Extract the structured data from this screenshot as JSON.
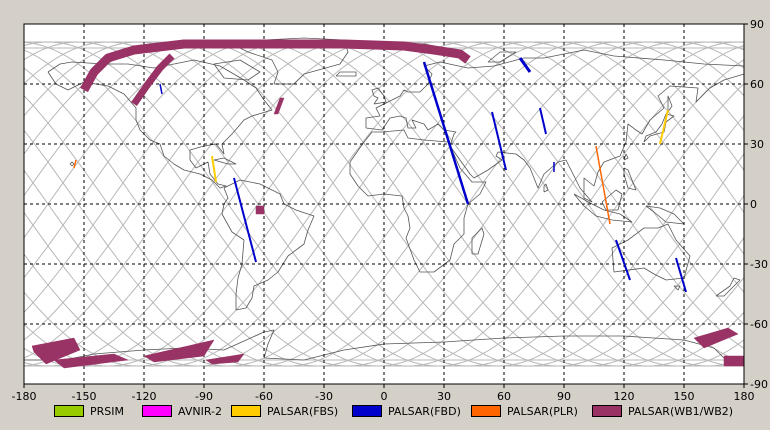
{
  "map": {
    "xlim": [
      -180,
      180
    ],
    "ylim": [
      -90,
      90
    ],
    "x_ticks": [
      {
        "value": -180,
        "label": "-180"
      },
      {
        "value": -150,
        "label": "-150"
      },
      {
        "value": -120,
        "label": "-120"
      },
      {
        "value": -90,
        "label": "-90"
      },
      {
        "value": -60,
        "label": "-60"
      },
      {
        "value": -30,
        "label": "-30"
      },
      {
        "value": 0,
        "label": "0"
      },
      {
        "value": 30,
        "label": "30"
      },
      {
        "value": 60,
        "label": "60"
      },
      {
        "value": 90,
        "label": "90"
      },
      {
        "value": 120,
        "label": "120"
      },
      {
        "value": 150,
        "label": "150"
      },
      {
        "value": 180,
        "label": "180"
      }
    ],
    "y_ticks": [
      {
        "value": 90,
        "label": "90"
      },
      {
        "value": 60,
        "label": "60"
      },
      {
        "value": 30,
        "label": "30"
      },
      {
        "value": 0,
        "label": "0"
      },
      {
        "value": -30,
        "label": "-30"
      },
      {
        "value": -60,
        "label": "-60"
      },
      {
        "value": -90,
        "label": "-90"
      }
    ],
    "grid": "dashed",
    "background_color": "#ffffff",
    "coastline_color": "#555555",
    "orbit_track_color": "#b8b8b8"
  },
  "legend": [
    {
      "label": "PRSIM",
      "color": "#99cc00"
    },
    {
      "label": "AVNIR-2",
      "color": "#ff00ff"
    },
    {
      "label": "PALSAR(FBS)",
      "color": "#ffcc00"
    },
    {
      "label": "PALSAR(FBD)",
      "color": "#0000cc"
    },
    {
      "label": "PALSAR(PLR)",
      "color": "#ff6600"
    },
    {
      "label": "PALSAR(WB1/WB2)",
      "color": "#993366"
    }
  ],
  "acquisitions": [
    {
      "mode": "PALSAR(WB1/WB2)",
      "type": "band",
      "width": 9,
      "path": [
        [
          -150,
          57
        ],
        [
          -145,
          66
        ],
        [
          -138,
          73
        ],
        [
          -125,
          77
        ],
        [
          -100,
          80
        ],
        [
          -60,
          80
        ],
        [
          -20,
          80
        ],
        [
          10,
          79
        ],
        [
          25,
          77
        ],
        [
          38,
          75
        ],
        [
          42,
          72
        ]
      ]
    },
    {
      "mode": "PALSAR(WB1/WB2)",
      "type": "band",
      "width": 7,
      "path": [
        [
          -125,
          50
        ],
        [
          -118,
          60
        ],
        [
          -112,
          68
        ],
        [
          -106,
          74
        ]
      ]
    },
    {
      "mode": "PALSAR(WB1/WB2)",
      "type": "polygon",
      "points": [
        [
          -52,
          53
        ],
        [
          -50,
          53
        ],
        [
          -53,
          45
        ],
        [
          -55,
          45
        ]
      ]
    },
    {
      "mode": "PALSAR(WB1/WB2)",
      "type": "polygon",
      "points": [
        [
          -64,
          -1
        ],
        [
          -60,
          -1
        ],
        [
          -60,
          -5
        ],
        [
          -64,
          -5
        ]
      ]
    },
    {
      "mode": "PALSAR(WB1/WB2)",
      "type": "polygon",
      "points": [
        [
          -176,
          -71
        ],
        [
          -155,
          -67
        ],
        [
          -152,
          -73
        ],
        [
          -169,
          -80
        ],
        [
          -175,
          -74
        ]
      ]
    },
    {
      "mode": "PALSAR(WB1/WB2)",
      "type": "polygon",
      "points": [
        [
          -165,
          -78
        ],
        [
          -135,
          -75
        ],
        [
          -128,
          -78
        ],
        [
          -160,
          -82
        ]
      ]
    },
    {
      "mode": "PALSAR(WB1/WB2)",
      "type": "polygon",
      "points": [
        [
          -120,
          -76
        ],
        [
          -85,
          -68
        ],
        [
          -90,
          -76
        ],
        [
          -115,
          -79
        ]
      ]
    },
    {
      "mode": "PALSAR(WB1/WB2)",
      "type": "polygon",
      "points": [
        [
          -89,
          -78
        ],
        [
          -70,
          -75
        ],
        [
          -73,
          -79
        ],
        [
          -86,
          -80
        ]
      ]
    },
    {
      "mode": "PALSAR(WB1/WB2)",
      "type": "polygon",
      "points": [
        [
          155,
          -67
        ],
        [
          172,
          -62
        ],
        [
          177,
          -65
        ],
        [
          160,
          -72
        ]
      ]
    },
    {
      "mode": "PALSAR(WB1/WB2)",
      "type": "polygon",
      "points": [
        [
          170,
          -76
        ],
        [
          180,
          -76
        ],
        [
          180,
          -81
        ],
        [
          170,
          -81
        ]
      ]
    },
    {
      "mode": "PALSAR(FBD)",
      "type": "line",
      "width": 2.5,
      "path": [
        [
          20,
          71
        ],
        [
          42,
          0
        ]
      ]
    },
    {
      "mode": "PALSAR(FBD)",
      "type": "line",
      "width": 2,
      "path": [
        [
          -75,
          13
        ],
        [
          -64,
          -29
        ]
      ]
    },
    {
      "mode": "PALSAR(FBD)",
      "type": "line",
      "width": 2,
      "path": [
        [
          54,
          46
        ],
        [
          61,
          17
        ]
      ]
    },
    {
      "mode": "PALSAR(FBD)",
      "type": "line",
      "width": 3,
      "path": [
        [
          68,
          73
        ],
        [
          73,
          66
        ]
      ]
    },
    {
      "mode": "PALSAR(FBD)",
      "type": "line",
      "width": 2,
      "path": [
        [
          78,
          48
        ],
        [
          81,
          35
        ]
      ]
    },
    {
      "mode": "PALSAR(FBD)",
      "type": "line",
      "width": 1.5,
      "path": [
        [
          85,
          21
        ],
        [
          85,
          16
        ]
      ]
    },
    {
      "mode": "PALSAR(FBD)",
      "type": "line",
      "width": 2,
      "path": [
        [
          116,
          -18
        ],
        [
          123,
          -38
        ]
      ]
    },
    {
      "mode": "PALSAR(FBD)",
      "type": "line",
      "width": 2,
      "path": [
        [
          146,
          -27
        ],
        [
          151,
          -44
        ]
      ]
    },
    {
      "mode": "PALSAR(FBD)",
      "type": "line",
      "width": 1.5,
      "path": [
        [
          -112,
          60
        ],
        [
          -111,
          55
        ]
      ]
    },
    {
      "mode": "PALSAR(FBS)",
      "type": "line",
      "width": 2,
      "path": [
        [
          -86,
          24
        ],
        [
          -84,
          11
        ]
      ]
    },
    {
      "mode": "PALSAR(FBS)",
      "type": "line",
      "width": 2,
      "path": [
        [
          142,
          47
        ],
        [
          138,
          30
        ]
      ]
    },
    {
      "mode": "PALSAR(PLR)",
      "type": "line",
      "width": 1.5,
      "path": [
        [
          106,
          29
        ],
        [
          113,
          -10
        ]
      ]
    },
    {
      "mode": "PALSAR(PLR)",
      "type": "line",
      "width": 1.5,
      "path": [
        [
          -154,
          22
        ],
        [
          -155,
          18
        ]
      ]
    }
  ]
}
